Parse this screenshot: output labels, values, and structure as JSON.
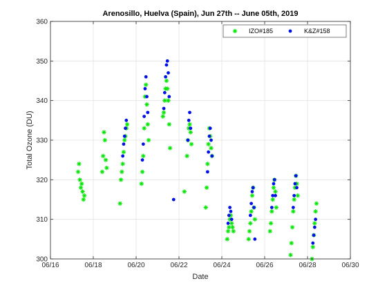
{
  "chart_data": {
    "type": "scatter",
    "title": "Arenosillo, Huelva (Spain), Jun 27th -- June 05th, 2019",
    "xlabel": "Date",
    "ylabel": "Total Ozone (DU)",
    "xlim": [
      "2019-06-16",
      "2019-06-30"
    ],
    "ylim": [
      300,
      360
    ],
    "x_ticks": [
      "06/16",
      "06/18",
      "06/20",
      "06/22",
      "06/24",
      "06/26",
      "06/28",
      "06/30"
    ],
    "y_ticks": [
      300,
      310,
      320,
      330,
      340,
      350,
      360
    ],
    "grid": true,
    "legend_position": "top-right",
    "series": [
      {
        "name": "IZO#185",
        "color": "#00e600",
        "marker": "asterisk",
        "points": [
          [
            "2019-06-17 07:00",
            322
          ],
          [
            "2019-06-17 08:00",
            324
          ],
          [
            "2019-06-17 09:00",
            320
          ],
          [
            "2019-06-17 10:00",
            318
          ],
          [
            "2019-06-17 11:00",
            319
          ],
          [
            "2019-06-17 12:00",
            317
          ],
          [
            "2019-06-17 13:00",
            315
          ],
          [
            "2019-06-17 14:00",
            316
          ],
          [
            "2019-06-18 10:00",
            322
          ],
          [
            "2019-06-18 11:00",
            326
          ],
          [
            "2019-06-18 12:00",
            332
          ],
          [
            "2019-06-18 13:00",
            330
          ],
          [
            "2019-06-18 14:00",
            325
          ],
          [
            "2019-06-18 15:00",
            323
          ],
          [
            "2019-06-19 06:00",
            314
          ],
          [
            "2019-06-19 07:00",
            320
          ],
          [
            "2019-06-19 08:00",
            322
          ],
          [
            "2019-06-19 09:00",
            324
          ],
          [
            "2019-06-19 10:00",
            327
          ],
          [
            "2019-06-19 11:00",
            330
          ],
          [
            "2019-06-19 12:00",
            331
          ],
          [
            "2019-06-19 13:00",
            333
          ],
          [
            "2019-06-19 14:00",
            334
          ],
          [
            "2019-06-20 06:00",
            319
          ],
          [
            "2019-06-20 07:00",
            322
          ],
          [
            "2019-06-20 08:00",
            326
          ],
          [
            "2019-06-20 09:00",
            333
          ],
          [
            "2019-06-20 10:00",
            341
          ],
          [
            "2019-06-20 11:00",
            344
          ],
          [
            "2019-06-20 12:00",
            339
          ],
          [
            "2019-06-20 13:00",
            334
          ],
          [
            "2019-06-20 14:00",
            330
          ],
          [
            "2019-06-21 06:00",
            336
          ],
          [
            "2019-06-21 07:00",
            337
          ],
          [
            "2019-06-21 08:00",
            340
          ],
          [
            "2019-06-21 09:00",
            343
          ],
          [
            "2019-06-21 10:00",
            345
          ],
          [
            "2019-06-21 11:00",
            343
          ],
          [
            "2019-06-21 12:00",
            340
          ],
          [
            "2019-06-21 13:00",
            334
          ],
          [
            "2019-06-21 14:00",
            328
          ],
          [
            "2019-06-22 06:00",
            317
          ],
          [
            "2019-06-22 09:00",
            326
          ],
          [
            "2019-06-22 10:00",
            330
          ],
          [
            "2019-06-22 11:00",
            333
          ],
          [
            "2019-06-22 12:00",
            334
          ],
          [
            "2019-06-22 13:00",
            332
          ],
          [
            "2019-06-22 14:00",
            329
          ],
          [
            "2019-06-23 06:00",
            313
          ],
          [
            "2019-06-23 07:00",
            318
          ],
          [
            "2019-06-23 08:00",
            324
          ],
          [
            "2019-06-23 09:00",
            329
          ],
          [
            "2019-06-23 10:00",
            333
          ],
          [
            "2019-06-23 11:00",
            331
          ],
          [
            "2019-06-23 12:00",
            328
          ],
          [
            "2019-06-23 13:00",
            326
          ],
          [
            "2019-06-24 06:00",
            305
          ],
          [
            "2019-06-24 07:00",
            307
          ],
          [
            "2019-06-24 08:00",
            308
          ],
          [
            "2019-06-24 09:00",
            310
          ],
          [
            "2019-06-24 10:00",
            311
          ],
          [
            "2019-06-24 11:00",
            309
          ],
          [
            "2019-06-24 12:00",
            308
          ],
          [
            "2019-06-24 13:00",
            307
          ],
          [
            "2019-06-25 06:00",
            305
          ],
          [
            "2019-06-25 07:00",
            307
          ],
          [
            "2019-06-25 08:00",
            309
          ],
          [
            "2019-06-25 09:00",
            312
          ],
          [
            "2019-06-25 10:00",
            316
          ],
          [
            "2019-06-25 11:00",
            318
          ],
          [
            "2019-06-25 12:00",
            313
          ],
          [
            "2019-06-25 13:00",
            310
          ],
          [
            "2019-06-26 06:00",
            307
          ],
          [
            "2019-06-26 07:00",
            309
          ],
          [
            "2019-06-26 08:00",
            312
          ],
          [
            "2019-06-26 09:00",
            315
          ],
          [
            "2019-06-26 10:00",
            318
          ],
          [
            "2019-06-26 11:00",
            320
          ],
          [
            "2019-06-26 12:00",
            317
          ],
          [
            "2019-06-26 13:00",
            313
          ],
          [
            "2019-06-27 05:00",
            301
          ],
          [
            "2019-06-27 06:00",
            304
          ],
          [
            "2019-06-27 07:00",
            308
          ],
          [
            "2019-06-27 08:00",
            312
          ],
          [
            "2019-06-27 09:00",
            315
          ],
          [
            "2019-06-27 10:00",
            318
          ],
          [
            "2019-06-27 11:00",
            321
          ],
          [
            "2019-06-27 12:00",
            319
          ],
          [
            "2019-06-27 13:00",
            316
          ],
          [
            "2019-06-28 05:00",
            300
          ],
          [
            "2019-06-28 06:00",
            303
          ],
          [
            "2019-06-28 07:00",
            306
          ],
          [
            "2019-06-28 08:00",
            309
          ],
          [
            "2019-06-28 09:00",
            312
          ],
          [
            "2019-06-28 10:00",
            314
          ]
        ]
      },
      {
        "name": "K&Z#158",
        "color": "#0010e8",
        "marker": "dot",
        "points": [
          [
            "2019-06-19 09:00",
            326
          ],
          [
            "2019-06-19 10:00",
            329
          ],
          [
            "2019-06-19 11:00",
            331
          ],
          [
            "2019-06-19 12:00",
            333
          ],
          [
            "2019-06-19 13:00",
            335
          ],
          [
            "2019-06-20 07:00",
            325
          ],
          [
            "2019-06-20 08:00",
            329
          ],
          [
            "2019-06-20 09:00",
            336
          ],
          [
            "2019-06-20 10:00",
            343
          ],
          [
            "2019-06-20 11:00",
            346
          ],
          [
            "2019-06-20 12:00",
            341
          ],
          [
            "2019-06-20 13:00",
            337
          ],
          [
            "2019-06-21 07:00",
            338
          ],
          [
            "2019-06-21 08:00",
            342
          ],
          [
            "2019-06-21 09:00",
            346
          ],
          [
            "2019-06-21 10:00",
            349
          ],
          [
            "2019-06-21 11:00",
            350
          ],
          [
            "2019-06-21 12:00",
            347
          ],
          [
            "2019-06-21 13:00",
            341
          ],
          [
            "2019-06-21 18:00",
            315
          ],
          [
            "2019-06-22 10:00",
            330
          ],
          [
            "2019-06-22 11:00",
            335
          ],
          [
            "2019-06-22 12:00",
            337
          ],
          [
            "2019-06-22 13:00",
            333
          ],
          [
            "2019-06-23 08:00",
            322
          ],
          [
            "2019-06-23 09:00",
            327
          ],
          [
            "2019-06-23 10:00",
            331
          ],
          [
            "2019-06-23 11:00",
            333
          ],
          [
            "2019-06-23 12:00",
            330
          ],
          [
            "2019-06-23 13:00",
            326
          ],
          [
            "2019-06-24 07:00",
            309
          ],
          [
            "2019-06-24 08:00",
            311
          ],
          [
            "2019-06-24 09:00",
            313
          ],
          [
            "2019-06-24 10:00",
            312
          ],
          [
            "2019-06-24 11:00",
            310
          ],
          [
            "2019-06-25 08:00",
            311
          ],
          [
            "2019-06-25 09:00",
            314
          ],
          [
            "2019-06-25 10:00",
            317
          ],
          [
            "2019-06-25 11:00",
            318
          ],
          [
            "2019-06-25 12:00",
            313
          ],
          [
            "2019-06-25 13:00",
            305
          ],
          [
            "2019-06-26 08:00",
            313
          ],
          [
            "2019-06-26 09:00",
            316
          ],
          [
            "2019-06-26 10:00",
            319
          ],
          [
            "2019-06-26 11:00",
            320
          ],
          [
            "2019-06-26 12:00",
            316
          ],
          [
            "2019-06-27 08:00",
            313
          ],
          [
            "2019-06-27 09:00",
            316
          ],
          [
            "2019-06-27 10:00",
            319
          ],
          [
            "2019-06-27 11:00",
            321
          ],
          [
            "2019-06-27 12:00",
            318
          ],
          [
            "2019-06-28 06:00",
            304
          ],
          [
            "2019-06-28 07:00",
            306
          ],
          [
            "2019-06-28 08:00",
            308
          ],
          [
            "2019-06-28 09:00",
            310
          ]
        ]
      }
    ]
  }
}
